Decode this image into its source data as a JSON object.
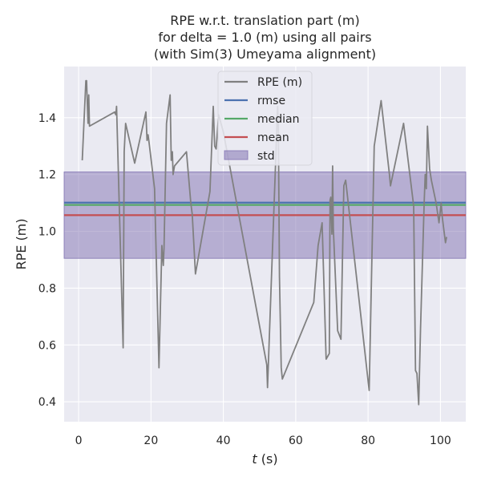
{
  "chart_data": {
    "type": "line",
    "title": [
      "RPE w.r.t. translation part (m)",
      "for delta = 1.0 (m) using all pairs",
      "(with Sim(3) Umeyama alignment)"
    ],
    "xlabel_italic": "t",
    "xlabel_rest": " (s)",
    "ylabel": "RPE (m)",
    "xlim": [
      -4,
      107
    ],
    "ylim": [
      0.33,
      1.58
    ],
    "xticks": [
      0,
      20,
      40,
      60,
      80,
      100
    ],
    "yticks": [
      0.4,
      0.6,
      0.8,
      1.0,
      1.2,
      1.4
    ],
    "ytick_labels": [
      "0.4",
      "0.6",
      "0.8",
      "1.0",
      "1.2",
      "1.4"
    ],
    "grid": true,
    "legend_placement": "top-center",
    "legend": [
      "RPE (m)",
      "rmse",
      "median",
      "mean",
      "std"
    ],
    "stats": {
      "rmse": 1.101,
      "median": 1.093,
      "mean": 1.057,
      "std_band": [
        0.905,
        1.209
      ]
    },
    "series": [
      {
        "name": "RPE (m)",
        "color": "#808080",
        "x": [
          1.0,
          2.0,
          2.2,
          2.4,
          2.6,
          2.8,
          3.0,
          10.0,
          10.3,
          10.5,
          12.3,
          12.6,
          13.0,
          15.5,
          18.6,
          18.9,
          19.2,
          19.6,
          21.0,
          22.2,
          23.0,
          23.4,
          23.6,
          24.3,
          25.3,
          25.6,
          25.9,
          26.1,
          26.5,
          29.8,
          31.0,
          31.4,
          32.3,
          36.3,
          37.2,
          37.6,
          38.0,
          38.7,
          40.0,
          52.0,
          52.2,
          55.0,
          55.2,
          55.5,
          56.0,
          56.3,
          65.0,
          66.2,
          67.3,
          68.4,
          69.3,
          69.5,
          69.7,
          70.0,
          70.2,
          70.4,
          71.6,
          72.5,
          73.3,
          73.8,
          80.3,
          81.7,
          83.6,
          85.9,
          86.2,
          89.8,
          92.6,
          93.1,
          93.5,
          94.0,
          94.5,
          95.5,
          95.8,
          96.1,
          96.4,
          97.0,
          97.5,
          98.8,
          99.6,
          100.2,
          100.5,
          101.0,
          101.4,
          101.7
        ],
        "y": [
          1.25,
          1.53,
          1.53,
          1.45,
          1.38,
          1.48,
          1.37,
          1.42,
          1.41,
          1.44,
          0.59,
          1.28,
          1.38,
          1.24,
          1.42,
          1.32,
          1.34,
          1.3,
          1.15,
          0.52,
          0.95,
          0.88,
          0.94,
          1.38,
          1.48,
          1.25,
          1.28,
          1.2,
          1.23,
          1.28,
          1.1,
          1.06,
          0.85,
          1.14,
          1.44,
          1.3,
          1.29,
          1.41,
          1.35,
          0.53,
          0.45,
          1.44,
          1.38,
          0.84,
          0.52,
          0.48,
          0.75,
          0.95,
          1.03,
          0.55,
          0.57,
          1.11,
          1.12,
          0.99,
          1.23,
          1.01,
          0.65,
          0.62,
          1.16,
          1.18,
          0.44,
          1.3,
          1.46,
          1.2,
          1.16,
          1.38,
          1.09,
          0.51,
          0.5,
          0.39,
          0.66,
          1.1,
          1.2,
          1.15,
          1.37,
          1.22,
          1.18,
          1.1,
          1.03,
          1.1,
          1.05,
          1.0,
          0.96,
          0.98
        ]
      },
      {
        "name": "rmse",
        "color": "#4c72b0"
      },
      {
        "name": "median",
        "color": "#55a868"
      },
      {
        "name": "mean",
        "color": "#c44e52"
      },
      {
        "name": "std",
        "color": "#8172b2"
      }
    ],
    "colors": {
      "plot_bg": "#eaeaf2",
      "grid": "#ffffff",
      "text": "#262626",
      "std_fill": "#8172b2"
    }
  }
}
